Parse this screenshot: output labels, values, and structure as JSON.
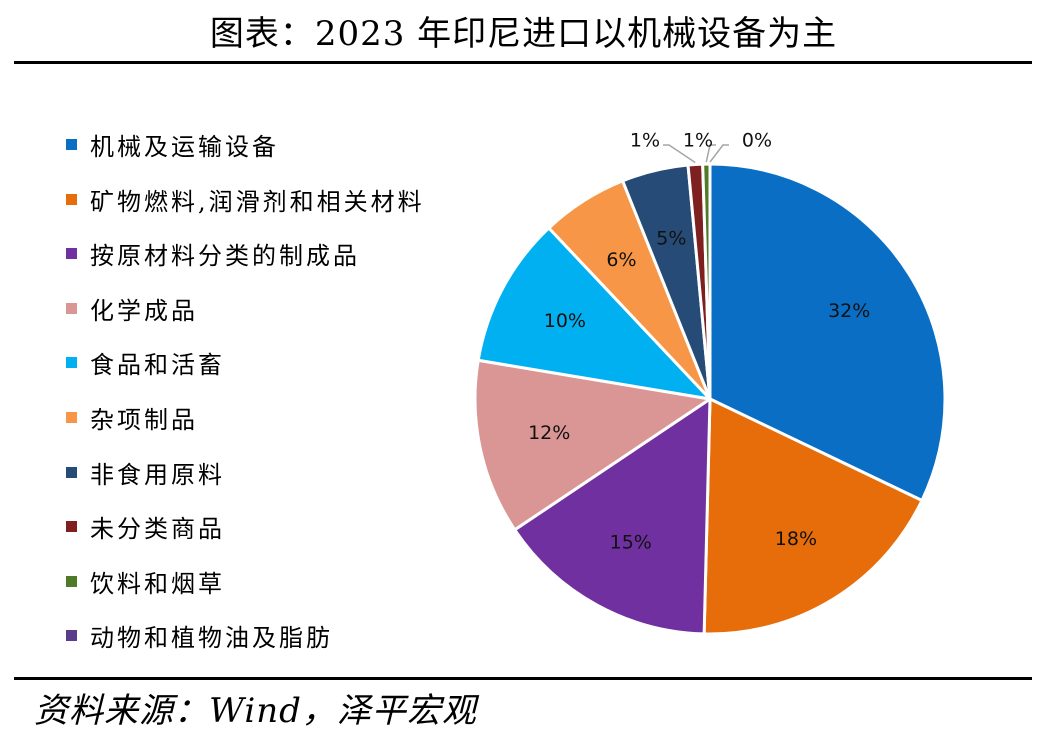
{
  "title": "图表：2023 年印尼进口以机械设备为主",
  "source": "资料来源：Wind，泽平宏观",
  "chart_data": {
    "type": "pie",
    "categories": [
      "机械及运输设备",
      "矿物燃料,润滑剂和相关材料",
      "按原材料分类的制成品",
      "化学成品",
      "食品和活畜",
      "杂项制品",
      "非食用原料",
      "未分类商品",
      "饮料和烟草",
      "动物和植物油及脂肪"
    ],
    "values": [
      32.3,
      18.4,
      15.3,
      12.1,
      10.4,
      6.0,
      4.6,
      1.0,
      0.5,
      0.0
    ],
    "data_labels": [
      "32%",
      "18%",
      "15%",
      "12%",
      "10%",
      "6%",
      "5%",
      "1%",
      "1%",
      "0%"
    ],
    "colors": [
      "#0b6ec5",
      "#e76d0a",
      "#7030a0",
      "#da9694",
      "#00b0f0",
      "#f79646",
      "#264b77",
      "#7f2020",
      "#4f7a28",
      "#5b3c8a"
    ],
    "legend_position": "left"
  }
}
